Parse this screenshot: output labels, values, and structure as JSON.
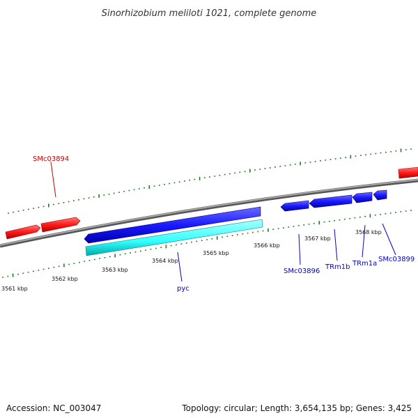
{
  "title": "Sinorhizobium meliloti 1021, complete genome",
  "footer": {
    "accession": "Accession: NC_003047",
    "info": "Topology: circular; Length: 3,654,135 bp; Genes: 3,425"
  },
  "colors": {
    "forward_gene": "#ff1a1a",
    "reverse_gene": "#1a1aff",
    "rna_gene": "#33ffff",
    "backbone": "#888888",
    "tick": "#227722",
    "forward_label": "#cc0000",
    "reverse_label": "#0000cc"
  },
  "scale_labels": [
    "3561 kbp",
    "3562 kbp",
    "3563 kbp",
    "3564 kbp",
    "3565 kbp",
    "3566 kbp",
    "3567 kbp",
    "3568 kbp"
  ],
  "gene_labels": {
    "smc03894": "SMc03894",
    "pyc": "pyc",
    "smc03896": "SMc03896",
    "trm1b": "TRm1b",
    "trm1a": "TRm1a",
    "smc03899": "SMc03899"
  }
}
